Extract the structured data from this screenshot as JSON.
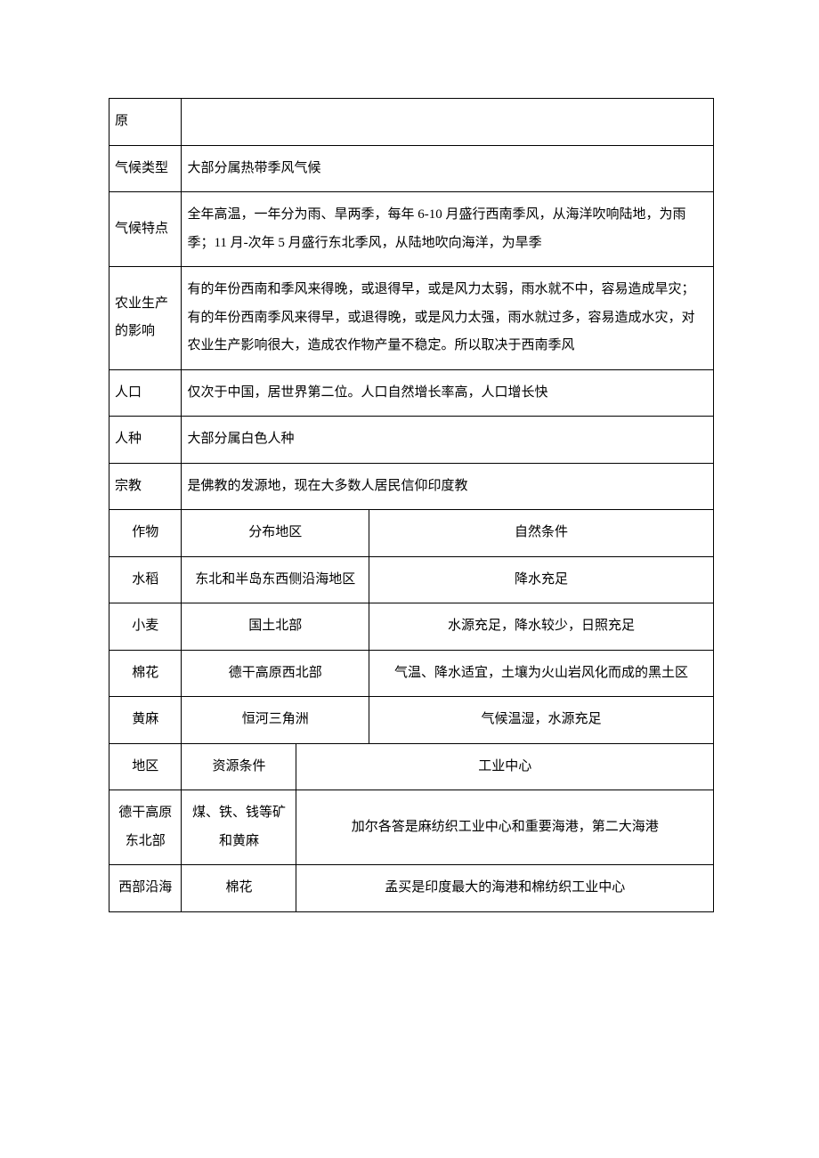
{
  "rows_top": [
    {
      "label": "原",
      "content": ""
    },
    {
      "label": "气候类型",
      "content": "大部分属热带季风气候"
    },
    {
      "label": "气候特点",
      "content": "全年高温，一年分为雨、旱两季，每年 6-10 月盛行西南季风，从海洋吹响陆地，为雨季；11 月-次年 5 月盛行东北季风，从陆地吹向海洋，为旱季"
    },
    {
      "label": "农业生产的影响",
      "content": "有的年份西南和季风来得晚，或退得早，或是风力太弱，雨水就不中，容易造成旱灾；有的年份西南季风来得早，或退得晚，或是风力太强，雨水就过多，容易造成水灾，对农业生产影响很大，造成农作物产量不稳定。所以取决于西南季风"
    },
    {
      "label": "人口",
      "content": "仅次于中国，居世界第二位。人口自然增长率高，人口增长快"
    },
    {
      "label": "人种",
      "content": "大部分属白色人种"
    },
    {
      "label": "宗教",
      "content": "是佛教的发源地，现在大多数人居民信仰印度教"
    }
  ],
  "crops_header": {
    "c1": "作物",
    "c2": "分布地区",
    "c3": "自然条件"
  },
  "crops": [
    {
      "c1": "水稻",
      "c2": "东北和半岛东西侧沿海地区",
      "c3": "降水充足"
    },
    {
      "c1": "小麦",
      "c2": "国土北部",
      "c3": "水源充足，降水较少，日照充足"
    },
    {
      "c1": "棉花",
      "c2": "德干高原西北部",
      "c3": "气温、降水适宜，土壤为火山岩风化而成的黑土区"
    },
    {
      "c1": "黄麻",
      "c2": "恒河三角洲",
      "c3": "气候温湿，水源充足"
    }
  ],
  "industry_header": {
    "c1": "地区",
    "c2": "资源条件",
    "c3": "工业中心"
  },
  "industry": [
    {
      "c1": "德干高原东北部",
      "c2": "煤、铁、钱等矿和黄麻",
      "c3": "加尔各答是麻纺织工业中心和重要海港，第二大海港"
    },
    {
      "c1": "西部沿海",
      "c2": "棉花",
      "c3": "孟买是印度最大的海港和棉纺织工业中心"
    }
  ]
}
